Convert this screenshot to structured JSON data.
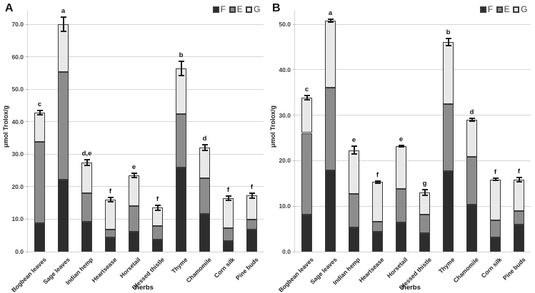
{
  "figure": {
    "background": "#ffffff",
    "series_colors": {
      "F": "#2d2d2d",
      "E": "#8c8c8c",
      "G": "#e8e8e8"
    },
    "segment_border_color": "#3a3a3a",
    "grid_color": "#d6d6d6",
    "error_bar_color": "#1c1c1c",
    "text_color": "#111111"
  },
  "chart_data": [
    {
      "type": "bar",
      "stacked": true,
      "panel_label": "A",
      "xlabel": "herbs",
      "ylabel": "μmol Trolox/g",
      "ylim": [
        0,
        70
      ],
      "ytick_step": 10,
      "grid": true,
      "legend": [
        "F",
        "E",
        "G"
      ],
      "legend_position": "top-right",
      "categories": [
        "Bogbean leaves",
        "Sage leaves",
        "Indian hemp",
        "Heartsease",
        "Horsetail",
        "Blessed thistle",
        "Thyme",
        "Chamomile",
        "Corn silk",
        "Pine buds"
      ],
      "series": [
        {
          "name": "F",
          "values": [
            8.7,
            22.2,
            9.3,
            4.5,
            6.1,
            3.8,
            25.9,
            11.6,
            3.3,
            6.7
          ]
        },
        {
          "name": "E",
          "values": [
            25.2,
            33.0,
            8.7,
            2.3,
            8.0,
            4.2,
            16.5,
            10.9,
            4.0,
            3.1
          ]
        },
        {
          "name": "G",
          "values": [
            8.9,
            14.8,
            9.4,
            9.2,
            9.4,
            5.5,
            14.0,
            9.6,
            9.2,
            7.5
          ]
        }
      ],
      "totals": [
        42.8,
        70.0,
        27.4,
        16.0,
        23.5,
        13.5,
        56.4,
        32.1,
        16.5,
        17.3
      ],
      "error_bars": [
        0.6,
        2.3,
        0.8,
        0.7,
        0.7,
        0.7,
        2.2,
        0.9,
        0.6,
        0.8
      ],
      "sig_letters": [
        "c",
        "a",
        "d,e",
        "f",
        "e",
        "f",
        "b",
        "d",
        "f",
        "f"
      ]
    },
    {
      "type": "bar",
      "stacked": true,
      "panel_label": "B",
      "xlabel": "herbs",
      "ylabel": "μmol Trolox/g",
      "ylim": [
        0,
        50
      ],
      "ytick_step": 10,
      "grid": true,
      "legend": [
        "F",
        "E",
        "G"
      ],
      "legend_position": "top-right",
      "categories": [
        "Bogbean leaves",
        "Sage leaves",
        "Indian hemp",
        "Heartsease",
        "Horsetail",
        "Blessed thistle",
        "Thyme",
        "Chamomile",
        "Corn silk",
        "Pine buds"
      ],
      "series": [
        {
          "name": "F",
          "values": [
            8.1,
            17.9,
            5.4,
            4.4,
            6.4,
            4.0,
            17.7,
            10.3,
            3.1,
            5.9
          ]
        },
        {
          "name": "E",
          "values": [
            18.0,
            18.1,
            7.3,
            2.2,
            7.4,
            4.1,
            14.7,
            10.5,
            3.8,
            3.0
          ]
        },
        {
          "name": "G",
          "values": [
            7.8,
            14.8,
            9.6,
            8.7,
            9.4,
            4.9,
            13.7,
            8.2,
            9.0,
            6.9
          ]
        }
      ],
      "totals": [
        33.9,
        50.8,
        22.3,
        15.3,
        23.2,
        13.0,
        46.1,
        29.0,
        15.9,
        15.8
      ],
      "error_bars": [
        0.5,
        0.3,
        0.9,
        0.2,
        0.2,
        0.6,
        0.8,
        0.3,
        0.2,
        0.5
      ],
      "sig_letters": [
        "c",
        "a",
        "e",
        "f",
        "e",
        "g",
        "b",
        "d",
        "f",
        "f"
      ]
    }
  ]
}
